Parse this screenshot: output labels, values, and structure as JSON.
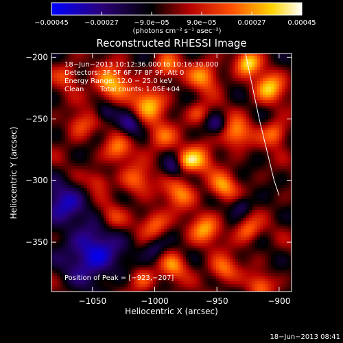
{
  "colorbar": {
    "ticks": [
      -0.00045,
      -0.00027,
      -9e-05,
      9e-05,
      0.00027,
      0.00045
    ],
    "tick_labels": [
      "−0.00045",
      "−0.00027",
      "−9.0e−05",
      "9.0e−05",
      "0.00027",
      "0.00045"
    ],
    "unit_label": "(photons cm⁻² s⁻¹ asec⁻²)",
    "range": [
      -0.00045,
      0.00045
    ],
    "stops": [
      "#0000ff",
      "#2a0078",
      "#000000",
      "#b40000",
      "#ff5000",
      "#ffd200",
      "#ffffff"
    ]
  },
  "chart_data": {
    "type": "heatmap",
    "title": "Reconstructed RHESSI Image",
    "xlabel": "Heliocentric X (arcsec)",
    "ylabel": "Heliocentric Y (arcsec)",
    "xlim": [
      -1083,
      -890
    ],
    "ylim": [
      -390,
      -197
    ],
    "x_ticks": [
      -1050,
      -1000,
      -950,
      -900
    ],
    "x_tick_labels": [
      "−1050",
      "−1000",
      "−950",
      "−900"
    ],
    "y_ticks": [
      -200,
      -250,
      -300,
      -350
    ],
    "y_tick_labels": [
      "−200",
      "−250",
      "−300",
      "−350"
    ],
    "value_range": [
      -0.00045,
      0.00045
    ],
    "annotations": [
      "18−Jun−2013 10:12:36.000 to 10:16:30.000",
      "Detectors: 3F 5F 6F 7F 8F 9F, Att 0",
      "Energy Range: 12.0 − 25.0 keV",
      "Clean",
      "Total counts: 1.05E+04"
    ],
    "peak_label": "Position of Peak = [−923,−207]",
    "peak_position": [
      -923,
      -207
    ],
    "limb_curve": [
      [
        -927,
        -197
      ],
      [
        -916,
        -250
      ],
      [
        -904,
        -300
      ],
      [
        -900,
        -312
      ]
    ],
    "timestamp": "18−Jun−2013 08:41"
  }
}
